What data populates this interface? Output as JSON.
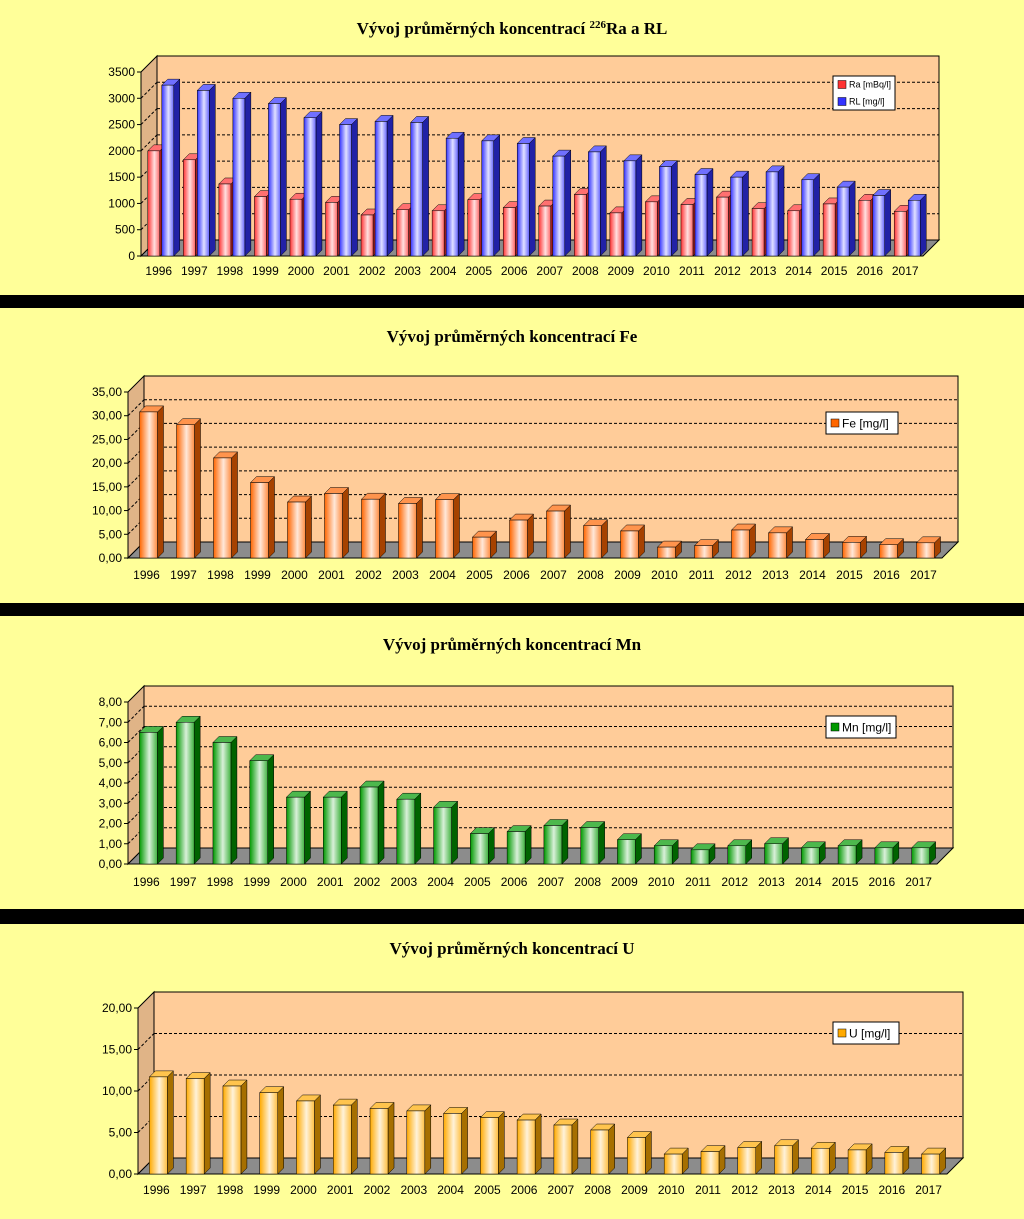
{
  "chart_data": [
    {
      "type": "bar",
      "title": "Vývoj průměrných koncentrací ",
      "title_sup": "226",
      "title_end": "Ra a RL",
      "categories": [
        "1996",
        "1997",
        "1998",
        "1999",
        "2000",
        "2001",
        "2002",
        "2003",
        "2004",
        "2005",
        "2006",
        "2007",
        "2008",
        "2009",
        "2010",
        "2011",
        "2012",
        "2013",
        "2014",
        "2015",
        "2016",
        "2017"
      ],
      "series": [
        {
          "name": "Ra [mBq/l]",
          "color": "#FF3333",
          "values": [
            2000,
            1830,
            1370,
            1130,
            1080,
            1020,
            780,
            880,
            860,
            1070,
            920,
            950,
            1170,
            820,
            1030,
            980,
            1120,
            900,
            860,
            990,
            1060,
            850
          ]
        },
        {
          "name": "RL [mg/l]",
          "color": "#3333FF",
          "values": [
            3250,
            3150,
            3000,
            2900,
            2630,
            2500,
            2560,
            2540,
            2240,
            2190,
            2140,
            1900,
            1980,
            1810,
            1700,
            1550,
            1500,
            1600,
            1450,
            1310,
            1150,
            1060
          ]
        }
      ],
      "ylim": [
        0,
        3500
      ],
      "yticks": [
        "0",
        "500",
        "1000",
        "1500",
        "2000",
        "2500",
        "3000",
        "3500"
      ],
      "background": "#FFCC99",
      "grid": true,
      "legend": "top-right"
    },
    {
      "type": "bar",
      "title": "Vývoj průměrných koncentrací Fe",
      "categories": [
        "1996",
        "1997",
        "1998",
        "1999",
        "2000",
        "2001",
        "2002",
        "2003",
        "2004",
        "2005",
        "2006",
        "2007",
        "2008",
        "2009",
        "2010",
        "2011",
        "2012",
        "2013",
        "2014",
        "2015",
        "2016",
        "2017"
      ],
      "series": [
        {
          "name": "Fe [mg/l]",
          "color": "#FF6600",
          "values": [
            30.8,
            28.1,
            21.1,
            15.9,
            11.8,
            13.6,
            12.4,
            11.5,
            12.3,
            4.4,
            8.0,
            9.9,
            6.8,
            5.7,
            2.3,
            2.6,
            5.9,
            5.3,
            3.9,
            3.3,
            2.8,
            3.2
          ]
        }
      ],
      "ylim": [
        0,
        35
      ],
      "yticks": [
        "0,00",
        "5,00",
        "10,00",
        "15,00",
        "20,00",
        "25,00",
        "30,00",
        "35,00"
      ],
      "background": "#FFCC99",
      "grid": true,
      "legend": "top-right"
    },
    {
      "type": "bar",
      "title": "Vývoj průměrných koncentrací Mn",
      "categories": [
        "1996",
        "1997",
        "1998",
        "1999",
        "2000",
        "2001",
        "2002",
        "2003",
        "2004",
        "2005",
        "2006",
        "2007",
        "2008",
        "2009",
        "2010",
        "2011",
        "2012",
        "2013",
        "2014",
        "2015",
        "2016",
        "2017"
      ],
      "series": [
        {
          "name": "Mn [mg/l]",
          "color": "#009900",
          "values": [
            6.5,
            7.0,
            6.0,
            5.1,
            3.3,
            3.3,
            3.8,
            3.2,
            2.8,
            1.5,
            1.6,
            1.9,
            1.8,
            1.2,
            0.9,
            0.7,
            0.9,
            1.0,
            0.8,
            0.9,
            0.8,
            0.8
          ]
        }
      ],
      "ylim": [
        0,
        8
      ],
      "yticks": [
        "0,00",
        "1,00",
        "2,00",
        "3,00",
        "4,00",
        "5,00",
        "6,00",
        "7,00",
        "8,00"
      ],
      "background": "#FFCC99",
      "grid": true,
      "legend": "top-right"
    },
    {
      "type": "bar",
      "title": "Vývoj průměrných koncentrací U",
      "categories": [
        "1996",
        "1997",
        "1998",
        "1999",
        "2000",
        "2001",
        "2002",
        "2003",
        "2004",
        "2005",
        "2006",
        "2007",
        "2008",
        "2009",
        "2010",
        "2011",
        "2012",
        "2013",
        "2014",
        "2015",
        "2016",
        "2017"
      ],
      "series": [
        {
          "name": "U [mg/l]",
          "color": "#FFAA00",
          "values": [
            11.7,
            11.5,
            10.6,
            9.8,
            8.8,
            8.3,
            7.9,
            7.6,
            7.3,
            6.8,
            6.5,
            5.9,
            5.3,
            4.4,
            2.4,
            2.7,
            3.2,
            3.4,
            3.1,
            2.9,
            2.6,
            2.4
          ]
        }
      ],
      "ylim": [
        0,
        20
      ],
      "yticks": [
        "0,00",
        "5,00",
        "10,00",
        "15,00",
        "20,00"
      ],
      "background": "#FFCC99",
      "grid": true,
      "legend": "top-right"
    }
  ]
}
